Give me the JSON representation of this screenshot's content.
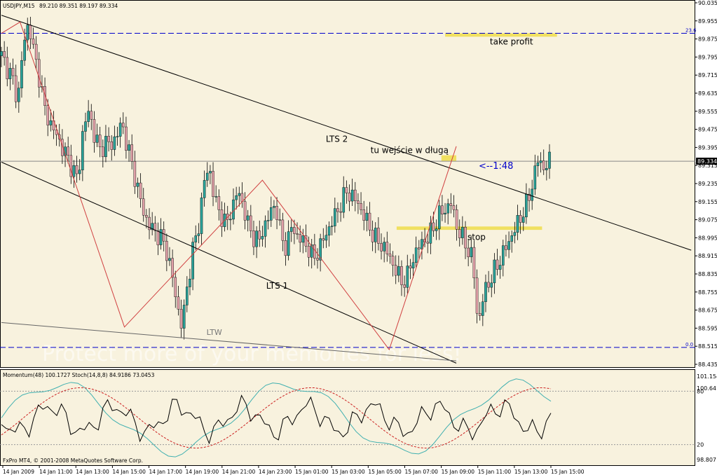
{
  "chart_data": {
    "type": "candlestick",
    "symbol_header": "USDJPY,M15",
    "ohlc_header": "89.210 89.351 89.197 89.334",
    "current_price": "89.334",
    "ylim": [
      88.435,
      90.035
    ],
    "y_ticks": [
      "90.035",
      "89.955",
      "89.875",
      "89.795",
      "89.715",
      "89.635",
      "89.555",
      "89.475",
      "89.395",
      "89.315",
      "89.235",
      "89.155",
      "89.075",
      "88.995",
      "88.915",
      "88.835",
      "88.755",
      "88.675",
      "88.595",
      "88.515",
      "88.435"
    ],
    "x_ticks": [
      "14 Jan 2009",
      "14 Jan 11:00",
      "14 Jan 13:00",
      "14 Jan 15:00",
      "14 Jan 17:00",
      "14 Jan 19:00",
      "14 Jan 21:00",
      "14 Jan 23:00",
      "15 Jan 01:00",
      "15 Jan 03:00",
      "15 Jan 05:00",
      "15 Jan 07:00",
      "15 Jan 09:00",
      "15 Jan 11:00",
      "15 Jan 13:00",
      "15 Jan 15:00"
    ],
    "close_path": [
      89.8,
      89.75,
      89.7,
      89.6,
      89.85,
      89.95,
      89.8,
      89.7,
      89.55,
      89.5,
      89.45,
      89.4,
      89.35,
      89.3,
      89.25,
      89.5,
      89.55,
      89.45,
      89.38,
      89.42,
      89.4,
      89.45,
      89.5,
      89.4,
      89.3,
      89.2,
      89.1,
      89.05,
      89.02,
      89.0,
      88.95,
      88.85,
      88.7,
      88.6,
      88.8,
      88.95,
      89.05,
      89.25,
      89.3,
      89.15,
      89.1,
      89.05,
      89.12,
      89.2,
      89.15,
      89.05,
      89.0,
      88.98,
      89.05,
      89.1,
      89.15,
      89.0,
      88.95,
      89.05,
      89.0,
      88.98,
      88.95,
      88.9,
      88.95,
      89.0,
      89.05,
      89.1,
      89.15,
      89.2,
      89.18,
      89.15,
      89.1,
      89.05,
      89.0,
      88.97,
      88.95,
      88.9,
      88.85,
      88.8,
      88.82,
      88.9,
      88.95,
      88.98,
      89.0,
      89.05,
      89.1,
      89.12,
      89.15,
      89.05,
      89.0,
      88.95,
      88.9,
      88.6,
      88.75,
      88.8,
      88.85,
      88.9,
      88.95,
      89.0,
      89.05,
      89.1,
      89.15,
      89.25,
      89.35,
      89.3,
      89.334
    ],
    "zigzag": [
      [
        0,
        89.9
      ],
      [
        5,
        89.95
      ],
      [
        33,
        88.6
      ],
      [
        70,
        89.25
      ],
      [
        104,
        88.5
      ],
      [
        122,
        89.4
      ]
    ],
    "horizontal_levels": [
      {
        "price": 89.9,
        "label": "23.6",
        "color": "#0000cc",
        "dash": true
      },
      {
        "price": 88.51,
        "label": "0.0",
        "color": "#0000cc",
        "dash": true
      },
      {
        "price": 89.334,
        "label": "",
        "color": "#888888",
        "dash": false
      }
    ],
    "trend_lines": [
      {
        "name": "LTS 2",
        "from": [
          0,
          89.98
        ],
        "to": [
          185,
          88.94
        ]
      },
      {
        "name": "LTS 1",
        "from": [
          0,
          89.33
        ],
        "to": [
          122,
          88.44
        ]
      },
      {
        "name": "LTW",
        "from": [
          0,
          88.62
        ],
        "to": [
          122,
          88.45
        ]
      }
    ],
    "zones": [
      {
        "from": [
          119,
          89.9
        ],
        "to": [
          149,
          89.885
        ],
        "color": "#f0e060"
      },
      {
        "from": [
          106,
          89.045
        ],
        "to": [
          145,
          89.03
        ],
        "color": "#f0e060"
      },
      {
        "from": [
          118,
          89.36
        ],
        "to": [
          122,
          89.335
        ],
        "color": "#f0e060"
      }
    ],
    "annotations": [
      {
        "text": "take profit",
        "x": 131,
        "y": 89.85,
        "size": 12,
        "color": "#000"
      },
      {
        "text": "LTS 2",
        "x": 87,
        "y": 89.42,
        "size": 12,
        "color": "#000"
      },
      {
        "text": "tu wejście w długą",
        "x": 99,
        "y": 89.37,
        "size": 12,
        "color": "#000"
      },
      {
        "text": "<--1:48",
        "x": 128,
        "y": 89.3,
        "size": 13,
        "color": "#0000cc"
      },
      {
        "text": "stop",
        "x": 125,
        "y": 88.985,
        "size": 12,
        "color": "#000"
      },
      {
        "text": "LTS 1",
        "x": 71,
        "y": 88.77,
        "size": 12,
        "color": "#000"
      },
      {
        "text": "LTW",
        "x": 55,
        "y": 88.565,
        "size": 11,
        "color": "#777"
      }
    ]
  },
  "indicator": {
    "label": "Momentum(48) 100.1727  Stoch(14,8,8) 84.9186 73.0453",
    "y_labels": [
      "101.154",
      "100.64",
      "80",
      "20",
      "98.807"
    ],
    "level_80": 80,
    "level_20": 20
  },
  "footer": {
    "copyright": "FxPro MT4, © 2001-2008 MetaQuotes Software Corp."
  },
  "watermark": {
    "text": "Protect more of your memories for less!"
  },
  "colors": {
    "background": "#f8f2de",
    "bull": "#2aa198",
    "bear": "#e0a0a8",
    "wick": "#000000",
    "zigzag": "#d04040",
    "trend": "#000000",
    "momentum": "#000000",
    "stoch_main": "#40b0b0",
    "stoch_signal": "#cc2222"
  }
}
